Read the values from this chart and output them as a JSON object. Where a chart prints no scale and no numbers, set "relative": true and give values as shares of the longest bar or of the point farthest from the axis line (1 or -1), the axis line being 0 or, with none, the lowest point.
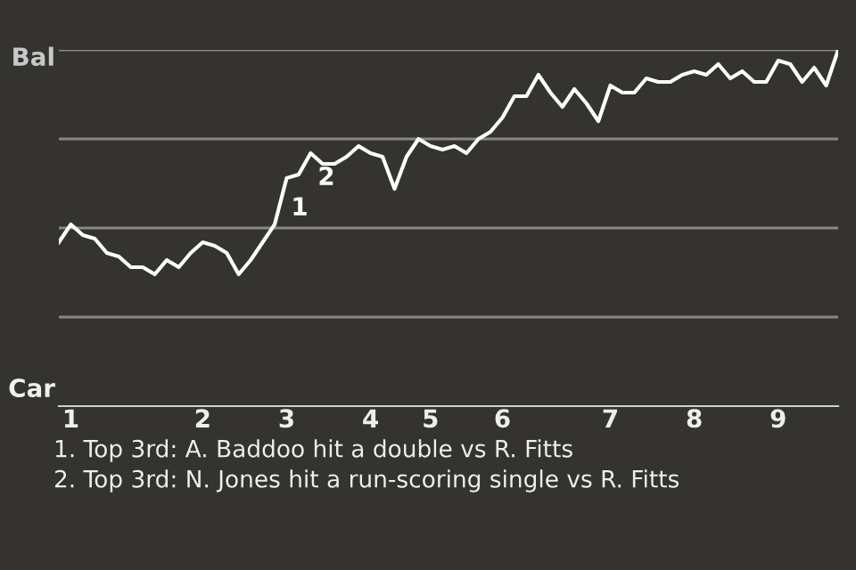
{
  "chart_data": {
    "type": "line",
    "relative": true,
    "categories": [
      null,
      "1",
      null,
      null,
      null,
      null,
      null,
      null,
      null,
      null,
      null,
      null,
      "2",
      null,
      null,
      null,
      null,
      null,
      null,
      "3",
      null,
      null,
      null,
      null,
      null,
      null,
      "4",
      null,
      null,
      null,
      null,
      "5",
      null,
      null,
      null,
      null,
      null,
      "6",
      null,
      null,
      null,
      null,
      null,
      null,
      null,
      null,
      "7",
      null,
      null,
      null,
      null,
      null,
      null,
      "8",
      null,
      null,
      null,
      null,
      null,
      null,
      "9",
      null,
      null,
      null,
      null,
      null
    ],
    "series": [
      {
        "color": "#ffffff",
        "values": [
          0.46,
          0.51,
          0.48,
          0.47,
          0.43,
          0.42,
          0.39,
          0.39,
          0.37,
          0.41,
          0.39,
          0.43,
          0.46,
          0.45,
          0.43,
          0.37,
          0.41,
          0.46,
          0.51,
          0.64,
          0.65,
          0.71,
          0.68,
          0.68,
          0.7,
          0.73,
          0.71,
          0.7,
          0.61,
          0.7,
          0.75,
          0.73,
          0.72,
          0.73,
          0.71,
          0.75,
          0.77,
          0.81,
          0.87,
          0.87,
          0.93,
          0.88,
          0.84,
          0.89,
          0.85,
          0.8,
          0.9,
          0.88,
          0.88,
          0.92,
          0.91,
          0.91,
          0.93,
          0.94,
          0.93,
          0.96,
          0.92,
          0.94,
          0.91,
          0.91,
          0.97,
          0.96,
          0.91,
          0.95,
          0.9,
          1.0
        ]
      }
    ],
    "marker": "none",
    "line_style": "solid",
    "ref_lines": [
      {
        "axis": "y",
        "value": 0.25,
        "color": "#8a8886"
      },
      {
        "axis": "y",
        "value": 0.5,
        "color": "#8a8886"
      },
      {
        "axis": "y",
        "value": 0.75,
        "color": "#8a8886"
      },
      {
        "axis": "y",
        "value": 1,
        "color": "#8a8886"
      }
    ],
    "annotations": [
      "Bal",
      "Car",
      "1",
      "2",
      "1. Top 3rd: A. Baddoo hit a double vs R. Fitts",
      "2. Top 3rd: N. Jones hit a run-scoring single vs R. Fitts"
    ]
  }
}
